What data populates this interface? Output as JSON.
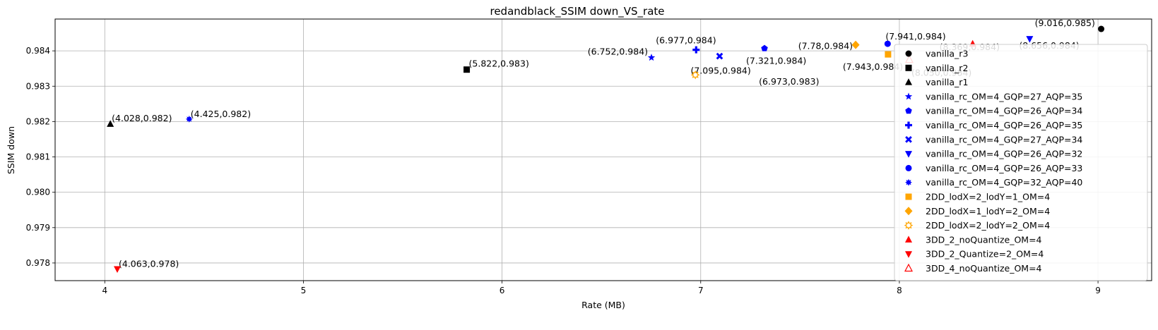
{
  "chart_data": {
    "type": "scatter",
    "title": "redandblack_SSIM down_VS_rate",
    "xlabel": "Rate (MB)",
    "ylabel": "SSIM down",
    "xlim": [
      3.75,
      9.27
    ],
    "ylim": [
      0.9775,
      0.9849
    ],
    "xticks": [
      4,
      5,
      6,
      7,
      8,
      9
    ],
    "yticks": [
      0.978,
      0.979,
      0.98,
      0.981,
      0.982,
      0.983,
      0.984
    ],
    "xtick_labels": [
      "4",
      "5",
      "6",
      "7",
      "8",
      "9"
    ],
    "ytick_labels": [
      "0.978",
      "0.979",
      "0.980",
      "0.981",
      "0.982",
      "0.983",
      "0.984"
    ],
    "grid": true,
    "legend_position": "right",
    "series": [
      {
        "name": "vanilla_r3",
        "marker": "circle",
        "color": "#000000",
        "points": [
          {
            "x": 9.016,
            "y": 0.98462,
            "label": "(9.016,0.985)"
          }
        ]
      },
      {
        "name": "vanilla_r2",
        "marker": "square",
        "color": "#000000",
        "points": [
          {
            "x": 5.822,
            "y": 0.98347,
            "label": "(5.822,0.983)"
          }
        ]
      },
      {
        "name": "vanilla_r1",
        "marker": "triangle-up",
        "color": "#000000",
        "points": [
          {
            "x": 4.028,
            "y": 0.98193,
            "label": "(4.028,0.982)"
          }
        ]
      },
      {
        "name": "vanilla_rc_OM=4_GQP=27_AQP=35",
        "marker": "star",
        "color": "#0000ff",
        "points": [
          {
            "x": 6.752,
            "y": 0.98381,
            "label": "(6.752,0.984)"
          }
        ]
      },
      {
        "name": "vanilla_rc_OM=4_GQP=26_AQP=34",
        "marker": "pentagon",
        "color": "#0000ff",
        "points": [
          {
            "x": 7.321,
            "y": 0.98407,
            "label": "(7.321,0.984)"
          }
        ]
      },
      {
        "name": "vanilla_rc_OM=4_GQP=26_AQP=35",
        "marker": "plus",
        "color": "#0000ff",
        "points": [
          {
            "x": 6.977,
            "y": 0.98403,
            "label": "(6.977,0.984)"
          }
        ]
      },
      {
        "name": "vanilla_rc_OM=4_GQP=27_AQP=34",
        "marker": "x",
        "color": "#0000ff",
        "points": [
          {
            "x": 7.095,
            "y": 0.98385,
            "label": "(7.095,0.984)"
          }
        ]
      },
      {
        "name": "vanilla_rc_OM=4_GQP=26_AQP=32",
        "marker": "triangle-down",
        "color": "#0000ff",
        "points": [
          {
            "x": 8.656,
            "y": 0.98434,
            "label": "(8.656,0.984)"
          }
        ]
      },
      {
        "name": "vanilla_rc_OM=4_GQP=26_AQP=33",
        "marker": "circle",
        "color": "#0000ff",
        "points": [
          {
            "x": 7.941,
            "y": 0.9842,
            "label": "(7.941,0.984)"
          }
        ]
      },
      {
        "name": "vanilla_rc_OM=4_GQP=32_AQP=40",
        "marker": "starburst",
        "color": "#0000ff",
        "points": [
          {
            "x": 4.425,
            "y": 0.98207,
            "label": "(4.425,0.982)"
          }
        ]
      },
      {
        "name": "2DD_lodX=2_lodY=1_OM=4",
        "marker": "square",
        "color": "#ffa500",
        "points": [
          {
            "x": 7.943,
            "y": 0.9839,
            "label": "(7.943,0.984)"
          }
        ]
      },
      {
        "name": "2DD_lodX=1_lodY=2_OM=4",
        "marker": "diamond",
        "color": "#ffa500",
        "points": [
          {
            "x": 7.78,
            "y": 0.98417,
            "label": "(7.78,0.984)"
          }
        ]
      },
      {
        "name": "2DD_lodX=2_lodY=2_OM=4",
        "marker": "sun",
        "color": "#ffa500",
        "points": [
          {
            "x": 6.973,
            "y": 0.98332,
            "label": "(6.973,0.983)"
          }
        ]
      },
      {
        "name": "3DD_2_noQuantize_OM=4",
        "marker": "triangle-up",
        "color": "#ff0000",
        "points": [
          {
            "x": 8.369,
            "y": 0.9842,
            "label": "(8.369,0.984)"
          }
        ]
      },
      {
        "name": "3DD_2_Quantize=2_OM=4",
        "marker": "triangle-down",
        "color": "#ff0000",
        "points": [
          {
            "x": 4.063,
            "y": 0.97783,
            "label": "(4.063,0.978)"
          }
        ]
      },
      {
        "name": "3DD_4_noQuantize_OM=4",
        "marker": "triangle-up-open",
        "color": "#ff0000",
        "points": [
          {
            "x": 8.05,
            "y": 0.98375,
            "label": "(8.050,0.984)"
          }
        ]
      }
    ]
  }
}
